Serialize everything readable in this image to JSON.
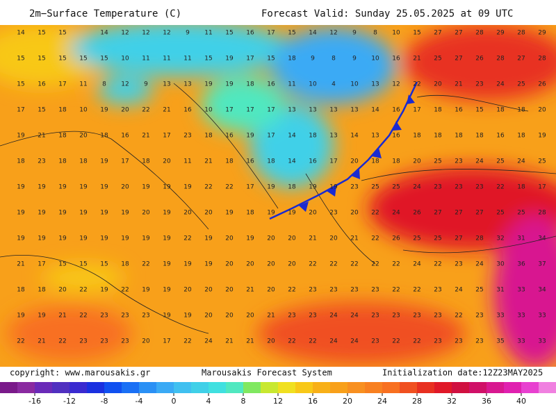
{
  "header": {
    "title": "2m−Surface Temperature (C)",
    "valid": "Forecast Valid:  Sunday 25.05.2025 at 09 UTC"
  },
  "footer": {
    "copyright": "copyright: www.marousakis.gr",
    "system": "Marousakis Forecast System",
    "init": "Initialization date:12Z23MAY2025"
  },
  "grid": [
    [
      14,
      15,
      15,
      null,
      14,
      12,
      12,
      12,
      9,
      11,
      15,
      16,
      17,
      15,
      14,
      12,
      9,
      8,
      10,
      15,
      27,
      27,
      28,
      29,
      28,
      29
    ],
    [
      15,
      15,
      15,
      15,
      15,
      10,
      11,
      11,
      11,
      15,
      19,
      17,
      15,
      18,
      9,
      8,
      9,
      10,
      16,
      21,
      25,
      27,
      26,
      28,
      27,
      28
    ],
    [
      15,
      16,
      17,
      11,
      8,
      12,
      9,
      13,
      13,
      19,
      19,
      18,
      16,
      11,
      10,
      4,
      10,
      13,
      12,
      22,
      20,
      21,
      23,
      24,
      25,
      26
    ],
    [
      17,
      15,
      18,
      10,
      19,
      20,
      22,
      21,
      16,
      10,
      17,
      17,
      17,
      13,
      13,
      13,
      13,
      14,
      16,
      17,
      18,
      16,
      15,
      18,
      18,
      20
    ],
    [
      19,
      21,
      18,
      20,
      18,
      16,
      21,
      17,
      23,
      18,
      16,
      19,
      17,
      14,
      18,
      13,
      14,
      13,
      16,
      18,
      18,
      18,
      18,
      16,
      18,
      19
    ],
    [
      18,
      23,
      18,
      18,
      19,
      17,
      18,
      20,
      11,
      21,
      18,
      16,
      18,
      14,
      16,
      17,
      20,
      18,
      18,
      20,
      25,
      23,
      24,
      25,
      24,
      25
    ],
    [
      19,
      19,
      19,
      19,
      19,
      20,
      19,
      19,
      19,
      22,
      22,
      17,
      19,
      18,
      19,
      19,
      23,
      25,
      25,
      24,
      23,
      23,
      23,
      22,
      18,
      17
    ],
    [
      19,
      19,
      19,
      19,
      19,
      19,
      20,
      19,
      20,
      20,
      19,
      18,
      19,
      19,
      20,
      23,
      20,
      22,
      24,
      26,
      27,
      27,
      27,
      25,
      25,
      28
    ],
    [
      19,
      19,
      19,
      19,
      19,
      19,
      19,
      19,
      22,
      19,
      20,
      19,
      20,
      20,
      21,
      20,
      21,
      22,
      26,
      25,
      25,
      27,
      28,
      32,
      31,
      34
    ],
    [
      21,
      17,
      15,
      15,
      15,
      18,
      22,
      19,
      19,
      19,
      20,
      20,
      20,
      20,
      22,
      22,
      22,
      22,
      22,
      24,
      22,
      23,
      24,
      30,
      36,
      37
    ],
    [
      18,
      18,
      20,
      22,
      19,
      22,
      19,
      19,
      20,
      20,
      20,
      21,
      20,
      22,
      23,
      23,
      23,
      23,
      22,
      22,
      23,
      24,
      25,
      31,
      33,
      34
    ],
    [
      19,
      19,
      21,
      22,
      23,
      23,
      23,
      19,
      19,
      20,
      20,
      20,
      21,
      23,
      23,
      24,
      24,
      23,
      23,
      23,
      23,
      22,
      23,
      33,
      33,
      33
    ],
    [
      22,
      21,
      22,
      23,
      23,
      23,
      20,
      17,
      22,
      24,
      21,
      21,
      20,
      22,
      22,
      24,
      24,
      23,
      22,
      22,
      23,
      23,
      23,
      35,
      33,
      33
    ]
  ],
  "colorbar": {
    "lim": [
      -20,
      44
    ],
    "ticks": [
      -16,
      -12,
      -8,
      -4,
      0,
      4,
      8,
      12,
      16,
      20,
      24,
      28,
      32,
      36,
      40
    ],
    "colors": [
      "#7a1a8a",
      "#8a2aa0",
      "#6a2ab8",
      "#5030c0",
      "#3a2ad0",
      "#1a30e0",
      "#1050f0",
      "#1a70f5",
      "#2a90f5",
      "#3aaaf5",
      "#40c0f0",
      "#40d0e8",
      "#40e0e0",
      "#50e8c0",
      "#80e860",
      "#c8e830",
      "#f0e020",
      "#f8c818",
      "#f8b018",
      "#f8a01a",
      "#f89020",
      "#f88020",
      "#f87020",
      "#f05020",
      "#e83020",
      "#e01828",
      "#d01040",
      "#d01068",
      "#d81890",
      "#e020b0",
      "#e840d0",
      "#f080e0"
    ]
  }
}
